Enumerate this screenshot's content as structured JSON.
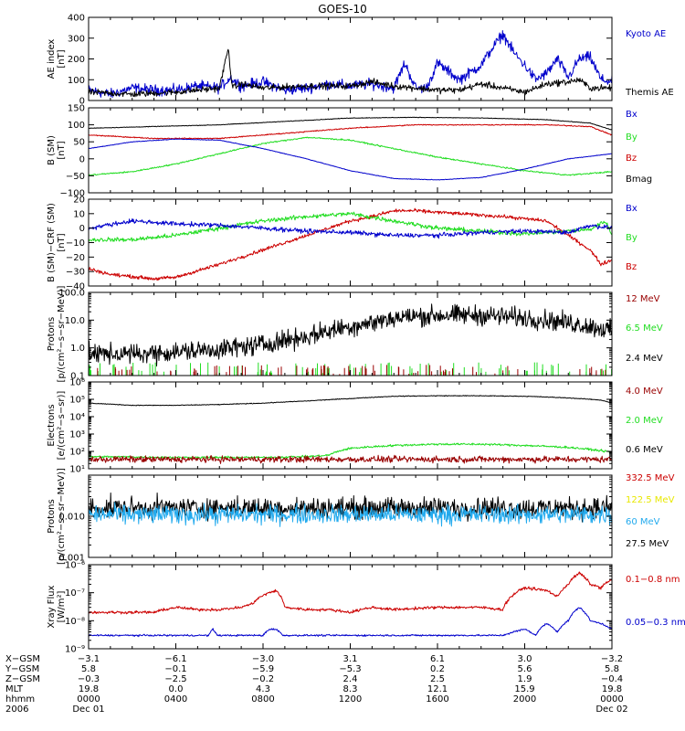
{
  "title": "GOES-10",
  "colors": {
    "black": "#000000",
    "blue": "#0000cc",
    "red": "#cc0000",
    "green": "#22dd22",
    "darkred": "#990000",
    "yellow": "#e8e800",
    "cyan": "#22aaee"
  },
  "chart_data": [
    {
      "id": "ae",
      "type": "line",
      "log": false,
      "ylabel_lines": [
        "AE index",
        "[nT]"
      ],
      "ylim": [
        0,
        400
      ],
      "yticks": [
        0,
        100,
        200,
        300,
        400
      ],
      "ytick_labels": [
        "0",
        "100",
        "200",
        "300",
        "400"
      ],
      "legend": [
        {
          "name": "Kyoto AE",
          "color": "#0000cc"
        },
        {
          "name": "Themis AE",
          "color": "#000000"
        }
      ],
      "series": [
        {
          "name": "Kyoto AE",
          "color": "#0000cc",
          "x": [
            0,
            1,
            2,
            3,
            4,
            5,
            6,
            6.5,
            7,
            8,
            9,
            10,
            11,
            12,
            13,
            14,
            14.5,
            15,
            15.5,
            16,
            17,
            18,
            18.5,
            19,
            19.5,
            20,
            20.5,
            21,
            21.5,
            22,
            22.5,
            23,
            23.5,
            24
          ],
          "y": [
            50,
            30,
            60,
            50,
            50,
            70,
            60,
            110,
            70,
            90,
            50,
            60,
            80,
            70,
            80,
            60,
            180,
            60,
            60,
            180,
            100,
            170,
            250,
            320,
            230,
            170,
            100,
            130,
            200,
            110,
            200,
            210,
            100,
            90
          ],
          "noise": 25
        },
        {
          "name": "Themis AE",
          "color": "#000000",
          "x": [
            0,
            2,
            4,
            6,
            6.4,
            6.6,
            7,
            8,
            10,
            12,
            13,
            14,
            16,
            17,
            18,
            19,
            20,
            21,
            22,
            22.5,
            23,
            24
          ],
          "y": [
            40,
            30,
            40,
            60,
            250,
            60,
            80,
            60,
            70,
            70,
            90,
            70,
            50,
            50,
            80,
            60,
            40,
            80,
            90,
            100,
            60,
            60
          ],
          "noise": 15
        }
      ]
    },
    {
      "id": "bsm",
      "type": "line",
      "log": false,
      "ylabel_lines": [
        "B (SM)",
        "[nT]"
      ],
      "ylim": [
        -100,
        150
      ],
      "yticks": [
        -100,
        -50,
        0,
        50,
        100,
        150
      ],
      "ytick_labels": [
        "−100",
        "−50",
        "0",
        "50",
        "100",
        "150"
      ],
      "legend": [
        {
          "name": "Bx",
          "color": "#0000cc"
        },
        {
          "name": "By",
          "color": "#22dd22"
        },
        {
          "name": "Bz",
          "color": "#cc0000"
        },
        {
          "name": "Bmag",
          "color": "#000000"
        }
      ],
      "series": [
        {
          "name": "Bmag",
          "color": "#000000",
          "x": [
            0,
            3,
            6,
            9,
            12,
            15,
            18,
            21,
            23,
            24
          ],
          "y": [
            90,
            95,
            100,
            110,
            120,
            122,
            120,
            115,
            105,
            85
          ],
          "noise": 0.8
        },
        {
          "name": "Bz",
          "color": "#cc0000",
          "x": [
            0,
            3,
            6,
            9,
            12,
            15,
            18,
            21,
            23,
            24
          ],
          "y": [
            70,
            60,
            60,
            75,
            90,
            100,
            100,
            100,
            95,
            70
          ],
          "noise": 1.5
        },
        {
          "name": "By",
          "color": "#22dd22",
          "x": [
            0,
            2,
            4,
            6,
            8,
            10,
            12,
            14,
            16,
            18,
            20,
            22,
            24
          ],
          "y": [
            -48,
            -38,
            -15,
            15,
            45,
            63,
            55,
            30,
            5,
            -15,
            -35,
            -48,
            -38
          ],
          "noise": 2
        },
        {
          "name": "Bx",
          "color": "#0000cc",
          "x": [
            0,
            2,
            4,
            6,
            8,
            10,
            12,
            14,
            16,
            18,
            20,
            22,
            24
          ],
          "y": [
            30,
            50,
            58,
            55,
            30,
            0,
            -35,
            -58,
            -62,
            -55,
            -30,
            0,
            15
          ],
          "noise": 0.8
        }
      ]
    },
    {
      "id": "bres",
      "type": "line",
      "log": false,
      "ylabel_lines": [
        "B (SM)−CRF (SM)",
        "[nT]"
      ],
      "ylim": [
        -40,
        20
      ],
      "yticks": [
        -40,
        -30,
        -20,
        -10,
        0,
        10,
        20
      ],
      "ytick_labels": [
        "−40",
        "−30",
        "−20",
        "−10",
        "0",
        "10",
        "20"
      ],
      "legend": [
        {
          "name": "Bx",
          "color": "#0000cc"
        },
        {
          "name": "By",
          "color": "#22dd22"
        },
        {
          "name": "Bz",
          "color": "#cc0000"
        }
      ],
      "series": [
        {
          "name": "Bz",
          "color": "#cc0000",
          "x": [
            0,
            1,
            3,
            4,
            6,
            8,
            10,
            11,
            12,
            13,
            14,
            15,
            17,
            19,
            21,
            22,
            23,
            23.5,
            24
          ],
          "y": [
            -28,
            -32,
            -35,
            -34,
            -25,
            -15,
            -5,
            0,
            5,
            8,
            12,
            12,
            10,
            8,
            5,
            -5,
            -15,
            -25,
            -22
          ],
          "noise": 1.2
        },
        {
          "name": "By",
          "color": "#22dd22",
          "x": [
            0,
            2,
            4,
            6,
            8,
            10,
            12,
            14,
            16,
            18,
            20,
            22,
            23,
            23.7,
            24
          ],
          "y": [
            -8,
            -8,
            -5,
            0,
            5,
            8,
            10,
            5,
            0,
            -2,
            -4,
            -2,
            -1,
            5,
            -5
          ],
          "noise": 1.5
        },
        {
          "name": "Bx",
          "color": "#0000cc",
          "x": [
            0,
            2,
            4,
            6,
            8,
            10,
            12,
            14,
            16,
            18,
            20,
            22,
            23,
            24
          ],
          "y": [
            0,
            5,
            3,
            2,
            0,
            -2,
            -3,
            -5,
            -5,
            -3,
            -2,
            -3,
            2,
            0
          ],
          "noise": 1.5
        }
      ]
    },
    {
      "id": "protons_lo",
      "type": "line",
      "log": true,
      "ylabel_lines": [
        "Protons",
        "[p/(cm²−s−sr−MeV)]"
      ],
      "ylim": [
        0.1,
        100
      ],
      "yticks": [
        0.1,
        1,
        10,
        100
      ],
      "ytick_labels": [
        "0.1",
        "1.0",
        "10.0",
        "100.0"
      ],
      "legend": [
        {
          "name": "12 MeV",
          "color": "#990000"
        },
        {
          "name": "6.5 MeV",
          "color": "#22dd22"
        },
        {
          "name": "2.4 MeV",
          "color": "#000000"
        }
      ],
      "series": [
        {
          "name": "6.5 MeV",
          "color": "#22dd22",
          "x": [
            0,
            24
          ],
          "y": [
            0.12,
            0.12
          ],
          "spikes": true,
          "spike_max": 0.3
        },
        {
          "name": "12 MeV",
          "color": "#990000",
          "x": [
            0,
            24
          ],
          "y": [
            0.1,
            0.1
          ],
          "spikes": true,
          "spike_max": 0.25
        },
        {
          "name": "2.4 MeV",
          "color": "#000000",
          "x": [
            0,
            2,
            4,
            6,
            8,
            10,
            11,
            12,
            13,
            14,
            16,
            18,
            20,
            22,
            24
          ],
          "y": [
            0.6,
            0.6,
            0.7,
            0.9,
            1.3,
            2.5,
            4,
            6,
            8,
            12,
            15,
            15,
            12,
            8,
            4
          ],
          "noise_log": 0.35
        }
      ]
    },
    {
      "id": "electrons",
      "type": "line",
      "log": true,
      "ylabel_lines": [
        "Electrons",
        "[e/(cm²−s−sr)]"
      ],
      "ylim": [
        10,
        1000000
      ],
      "yticks": [
        10,
        100,
        1000,
        10000,
        100000,
        1000000
      ],
      "ytick_labels": [
        "10¹",
        "10²",
        "10³",
        "10⁴",
        "10⁵",
        "10⁶"
      ],
      "legend": [
        {
          "name": "4.0 MeV",
          "color": "#990000"
        },
        {
          "name": "2.0 MeV",
          "color": "#22dd22"
        },
        {
          "name": "0.6 MeV",
          "color": "#000000"
        }
      ],
      "series": [
        {
          "name": "0.6 MeV",
          "color": "#000000",
          "x": [
            0,
            2,
            4,
            6,
            8,
            10,
            12,
            14,
            16,
            18,
            20,
            22,
            23.5,
            24
          ],
          "y": [
            60000,
            45000,
            45000,
            50000,
            60000,
            80000,
            110000,
            150000,
            160000,
            160000,
            150000,
            120000,
            90000,
            60000
          ],
          "noise_log": 0.02
        },
        {
          "name": "2.0 MeV",
          "color": "#22dd22",
          "x": [
            0,
            4,
            8,
            10,
            11,
            12,
            14,
            16,
            18,
            20,
            22,
            24
          ],
          "y": [
            50,
            45,
            45,
            50,
            60,
            150,
            220,
            260,
            260,
            220,
            170,
            90
          ],
          "noise_log": 0.06
        },
        {
          "name": "4.0 MeV",
          "color": "#990000",
          "x": [
            0,
            24
          ],
          "y": [
            35,
            35
          ],
          "noise_log": 0.18
        }
      ]
    },
    {
      "id": "protons_hi",
      "type": "line",
      "log": true,
      "ylabel_lines": [
        "Protons",
        "[p/(cm²−s−sr−MeV)]"
      ],
      "ylim": [
        0.001,
        0.1
      ],
      "yticks": [
        0.001,
        0.01,
        0.1
      ],
      "ytick_labels": [
        "0.001",
        "0.010",
        ""
      ],
      "legend": [
        {
          "name": "332.5 MeV",
          "color": "#cc0000"
        },
        {
          "name": "122.5 MeV",
          "color": "#e8e800"
        },
        {
          "name": "60 MeV",
          "color": "#22aaee"
        },
        {
          "name": "27.5 MeV",
          "color": "#000000"
        }
      ],
      "series": [
        {
          "name": "27.5 MeV",
          "color": "#000000",
          "x": [
            0,
            24
          ],
          "y": [
            0.016,
            0.016
          ],
          "noise_log": 0.25
        },
        {
          "name": "60 MeV",
          "color": "#22aaee",
          "x": [
            0,
            24
          ],
          "y": [
            0.011,
            0.011
          ],
          "noise_log": 0.22
        }
      ]
    },
    {
      "id": "xray",
      "type": "line",
      "log": true,
      "ylabel_lines": [
        "Xray  Flux",
        "[W/m²]"
      ],
      "ylim": [
        1e-09,
        1e-06
      ],
      "yticks": [
        1e-09,
        1e-08,
        1e-07,
        1e-06
      ],
      "ytick_labels": [
        "10⁻⁹",
        "10⁻⁸",
        "10⁻⁷",
        "10⁻⁶"
      ],
      "legend": [
        {
          "name": "0.1−0.8 nm",
          "color": "#cc0000"
        },
        {
          "name": "0.05−0.3 nm",
          "color": "#0000cc"
        }
      ],
      "series": [
        {
          "name": "0.1−0.8 nm",
          "color": "#cc0000",
          "x": [
            0,
            3,
            4,
            5,
            6,
            7,
            7.5,
            8,
            8.6,
            9,
            10,
            11,
            12,
            13,
            14,
            16,
            18,
            19,
            20,
            21,
            21.5,
            22,
            22.5,
            23,
            23.5,
            24
          ],
          "y": [
            2e-08,
            2e-08,
            3e-08,
            2.5e-08,
            2.5e-08,
            3e-08,
            4e-08,
            8e-08,
            1.2e-07,
            3e-08,
            2.5e-08,
            2.5e-08,
            2e-08,
            3e-08,
            2.5e-08,
            3e-08,
            3e-08,
            2.5e-08,
            1.5e-07,
            1.2e-07,
            7e-08,
            2e-07,
            5e-07,
            2e-07,
            1.5e-07,
            3e-07
          ],
          "noise_log": 0.05
        },
        {
          "name": "0.05−0.3 nm",
          "color": "#0000cc",
          "x": [
            0,
            5.5,
            5.7,
            5.9,
            8,
            8.3,
            8.6,
            8.9,
            19,
            20,
            20.5,
            21,
            21.5,
            22,
            22.5,
            23,
            23.5,
            24
          ],
          "y": [
            3e-09,
            3e-09,
            5e-09,
            3e-09,
            3e-09,
            5e-09,
            5e-09,
            3e-09,
            3e-09,
            5e-09,
            3e-09,
            8e-09,
            4e-09,
            1e-08,
            3e-08,
            1e-08,
            8e-09,
            5e-09
          ],
          "noise_log": 0.03
        }
      ]
    }
  ],
  "x_axis": {
    "range_hours": [
      0,
      24
    ],
    "tick_hours": [
      0,
      4,
      8,
      12,
      16,
      20,
      24
    ],
    "minor_per_major": 4,
    "row_labels": [
      "X−GSM",
      "Y−GSM",
      "Z−GSM",
      "MLT",
      "hhmm",
      "2006"
    ],
    "columns": [
      [
        "−3.1",
        "5.8",
        "−0.3",
        "19.8",
        "0000",
        "Dec 01"
      ],
      [
        "−6.1",
        "−0.1",
        "−2.5",
        "0.0",
        "0400",
        ""
      ],
      [
        "−3.0",
        "−5.9",
        "−0.2",
        "4.3",
        "0800",
        ""
      ],
      [
        "3.1",
        "−5.3",
        "2.4",
        "8.3",
        "1200",
        ""
      ],
      [
        "6.1",
        "0.2",
        "2.5",
        "12.1",
        "1600",
        ""
      ],
      [
        "3.0",
        "5.6",
        "1.9",
        "15.9",
        "2000",
        ""
      ],
      [
        "−3.2",
        "5.8",
        "−0.4",
        "19.8",
        "0000",
        "Dec 02"
      ]
    ]
  }
}
